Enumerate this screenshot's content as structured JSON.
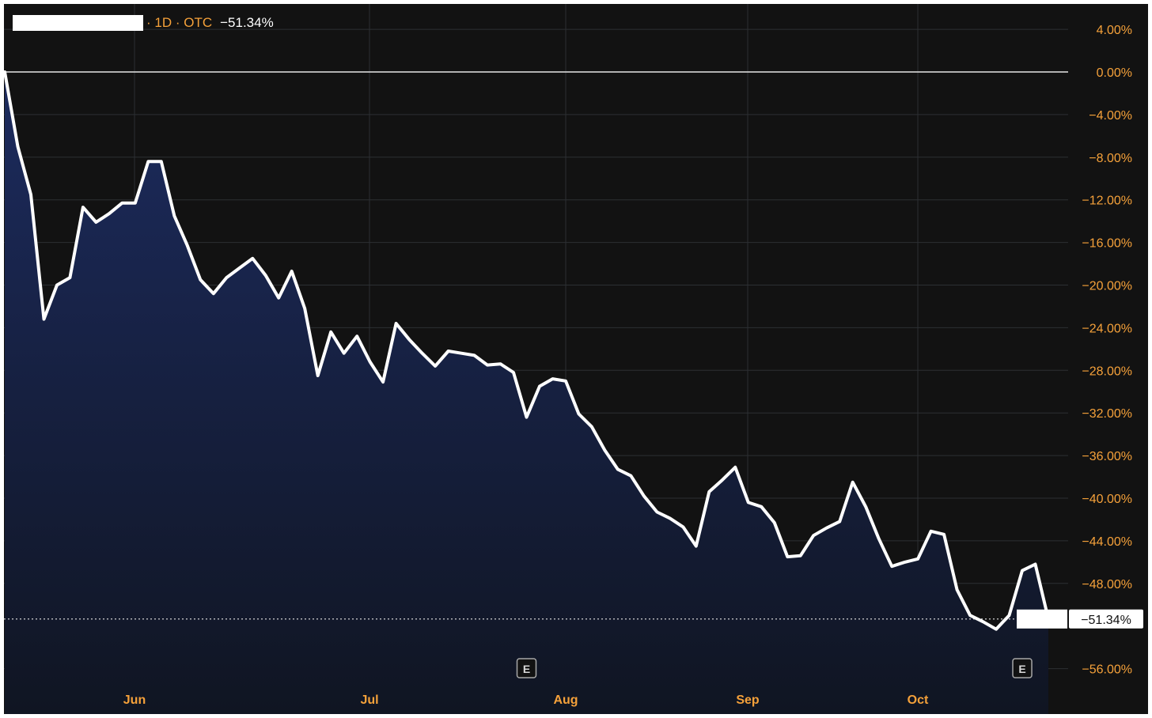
{
  "legend": {
    "meta": "· 1D · OTC",
    "change": "−51.34%"
  },
  "colors": {
    "background": "#121212",
    "axis_text": "#f5a13a",
    "line": "#ffffff",
    "area_top": "#1c2b5e",
    "area_bottom": "#101522"
  },
  "chart_data": {
    "type": "area",
    "title": "",
    "xlabel": "",
    "ylabel": "",
    "y_unit": "%",
    "ylim": [
      -58,
      5
    ],
    "x_tick_labels": [
      "Jun",
      "Jul",
      "Aug",
      "Sep",
      "Oct"
    ],
    "y_tick_labels": [
      "4.00%",
      "0.00%",
      "−4.00%",
      "−8.00%",
      "−12.00%",
      "−16.00%",
      "−20.00%",
      "−24.00%",
      "−28.00%",
      "−32.00%",
      "−36.00%",
      "−40.00%",
      "−44.00%",
      "−48.00%",
      "−56.00%"
    ],
    "y_tick_values": [
      4,
      0,
      -4,
      -8,
      -12,
      -16,
      -20,
      -24,
      -28,
      -32,
      -36,
      -40,
      -44,
      -48,
      -56
    ],
    "grid": true,
    "baseline": 0,
    "last_value": -51.34,
    "last_value_label": "−51.34%",
    "earnings_markers": [
      {
        "label": "E",
        "date_index": 40
      },
      {
        "label": "E",
        "date_index": 78
      }
    ],
    "series": [
      {
        "values": [
          0,
          -7,
          -11.5,
          -23.2,
          -20,
          -19.3,
          -12.7,
          -14.1,
          -13.3,
          -12.3,
          -12.3,
          -8.4,
          -8.4,
          -13.5,
          -16.3,
          -19.5,
          -20.8,
          -19.3,
          -18.4,
          -17.5,
          -19.1,
          -21.2,
          -18.7,
          -22.2,
          -28.5,
          -24.4,
          -26.4,
          -24.8,
          -27.2,
          -29.1,
          -23.6,
          -25.1,
          -26.4,
          -27.6,
          -26.2,
          -26.4,
          -26.6,
          -27.5,
          -27.4,
          -28.2,
          -32.4,
          -29.5,
          -28.8,
          -29,
          -32.1,
          -33.3,
          -35.5,
          -37.3,
          -37.9,
          -39.8,
          -41.3,
          -41.9,
          -42.7,
          -44.5,
          -39.4,
          -38.3,
          -37.1,
          -40.4,
          -40.8,
          -42.3,
          -45.5,
          -45.4,
          -43.5,
          -42.8,
          -42.2,
          -38.5,
          -40.8,
          -43.8,
          -46.4,
          -46,
          -45.7,
          -43.1,
          -43.4,
          -48.6,
          -51,
          -51.6,
          -52.3,
          -51,
          -46.8,
          -46.2,
          -51.34
        ]
      }
    ]
  }
}
